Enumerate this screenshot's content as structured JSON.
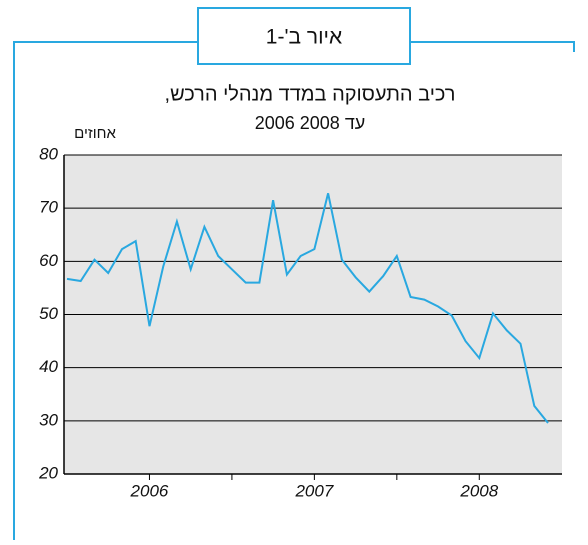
{
  "figure_label": "איור ב'-1",
  "chart_data": {
    "type": "line",
    "title": "רכיב התעסוקה במדד מנהלי הרכש,",
    "subtitle": "2006 עד 2008",
    "y_label": "אחוזים",
    "categories": [
      null,
      null,
      null,
      null,
      null,
      null,
      "2006",
      null,
      null,
      null,
      null,
      null,
      null,
      null,
      null,
      null,
      null,
      null,
      "2007",
      null,
      null,
      null,
      null,
      null,
      null,
      null,
      null,
      null,
      null,
      null,
      "2008",
      null,
      null,
      null,
      null,
      null
    ],
    "values": [
      56.7,
      56.3,
      60.3,
      57.8,
      62.3,
      63.8,
      47.8,
      59,
      67.5,
      58.5,
      66.5,
      61,
      58.5,
      56,
      56,
      71.5,
      57.5,
      61,
      62.3,
      72.8,
      60.3,
      57,
      54.3,
      57.2,
      61,
      53.3,
      52.8,
      51.5,
      49.8,
      45,
      41.8,
      50.2,
      47,
      44.5,
      32.8,
      29.6
    ],
    "color": "#29a8e0",
    "ylim": [
      20,
      80
    ],
    "yticks": [
      20,
      30,
      40,
      50,
      60,
      70,
      80
    ],
    "grid": true
  }
}
